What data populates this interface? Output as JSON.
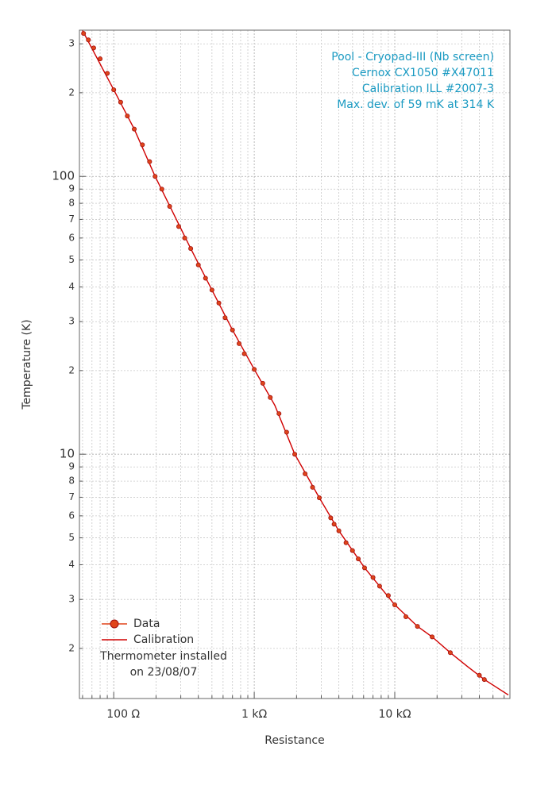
{
  "chart_data": {
    "type": "scatter-line",
    "x_label": "Resistance",
    "y_label": "Temperature (K)",
    "log_x": true,
    "log_y": true,
    "grid": true,
    "legend": "lower left",
    "xlim": [
      57,
      66000
    ],
    "ylim": [
      1.32,
      336
    ],
    "xticks": [
      {
        "value": 100,
        "label": "100  Ω"
      },
      {
        "value": 1000,
        "label": "1 kΩ"
      },
      {
        "value": 10000,
        "label": "10 kΩ"
      }
    ],
    "xminor_ticks": [
      60,
      70,
      80,
      90,
      200,
      300,
      400,
      500,
      600,
      700,
      800,
      900,
      2000,
      3000,
      4000,
      5000,
      6000,
      7000,
      8000,
      9000,
      20000,
      30000,
      40000,
      50000,
      60000
    ],
    "yticks": [
      {
        "value": 300,
        "label": "3"
      },
      {
        "value": 200,
        "label": "2"
      },
      100,
      {
        "value": 90,
        "label": "9"
      },
      {
        "value": 80,
        "label": "8"
      },
      {
        "value": 70,
        "label": "7"
      },
      {
        "value": 60,
        "label": "6"
      },
      {
        "value": 50,
        "label": "5"
      },
      {
        "value": 40,
        "label": "4"
      },
      {
        "value": 30,
        "label": "3"
      },
      {
        "value": 20,
        "label": "2"
      },
      10,
      9,
      8,
      7,
      6,
      5,
      4,
      3,
      2
    ],
    "annotations": [
      "Pool - Cryopad-III (Nb screen)",
      "Cernox CX1050 #X47011",
      "Calibration ILL #2007-3",
      "Max. dev. of 59 mK at 314 K"
    ],
    "note": [
      "Thermometer installed",
      "on 23/08/07"
    ],
    "series": [
      {
        "name": "Data",
        "color": "#e0451b",
        "edge": "#a01010",
        "x": [
          61,
          66,
          72,
          80,
          90,
          100,
          112,
          125,
          140,
          160,
          180,
          197,
          220,
          250,
          290,
          320,
          353,
          400,
          450,
          500,
          560,
          620,
          700,
          780,
          850,
          1000,
          1150,
          1300,
          1500,
          1700,
          1941,
          2300,
          2600,
          2905,
          3500,
          3700,
          4000,
          4500,
          5000,
          5500,
          6095,
          7000,
          7800,
          9000,
          10000,
          12000,
          14500,
          18450,
          24850,
          40000,
          43400
        ],
        "values": [
          327,
          310,
          290,
          265,
          235,
          205,
          185,
          165,
          148,
          130,
          113,
          100,
          90,
          78,
          66,
          60,
          55,
          48,
          43,
          39,
          35,
          31,
          28,
          25,
          23,
          20.2,
          18,
          16,
          14,
          12,
          10,
          8.5,
          7.6,
          6.97,
          5.9,
          5.6,
          5.3,
          4.8,
          4.5,
          4.2,
          3.9,
          3.6,
          3.35,
          3.1,
          2.87,
          2.6,
          2.4,
          2.2,
          1.93,
          1.6,
          1.545
        ]
      },
      {
        "name": "Calibration",
        "color": "#d00000",
        "x": [
          60,
          100,
          140,
          197,
          353,
          500,
          700,
          1000,
          1400,
          1941,
          2905,
          4000,
          6095,
          10000,
          14500,
          18450,
          24850,
          33000,
          43400,
          64300
        ],
        "values": [
          335,
          205,
          148,
          100,
          55,
          39,
          28,
          20.2,
          15,
          10,
          6.97,
          5.3,
          3.9,
          2.87,
          2.4,
          2.2,
          1.93,
          1.72,
          1.545,
          1.36
        ]
      }
    ]
  }
}
